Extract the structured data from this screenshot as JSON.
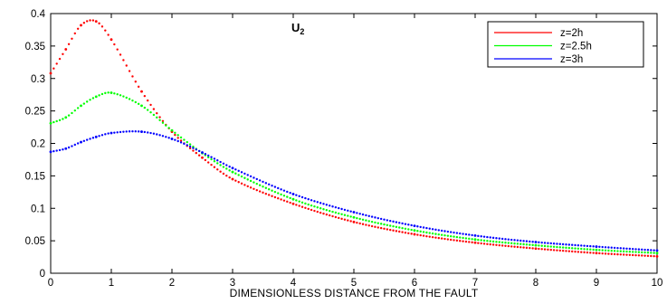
{
  "chart_data": {
    "type": "scatter",
    "title": "U2",
    "title_main": "U",
    "title_sub": "2",
    "xlabel": "DIMENSIONLESS DISTANCE FROM THE FAULT",
    "ylabel": "",
    "xlim": [
      0,
      10
    ],
    "ylim": [
      0,
      0.4
    ],
    "x_ticks": [
      "0",
      "1",
      "2",
      "3",
      "4",
      "5",
      "6",
      "7",
      "8",
      "9",
      "10"
    ],
    "y_ticks": [
      "0",
      "0.05",
      "0.1",
      "0.15",
      "0.2",
      "0.25",
      "0.3",
      "0.35",
      "0.4"
    ],
    "grid": false,
    "legend_position": "top-right",
    "marker": "dot",
    "series": [
      {
        "name": "z=2h",
        "color": "#ff0000",
        "x": [
          0,
          0.25,
          0.5,
          0.75,
          1,
          1.5,
          2,
          2.5,
          3,
          4,
          5,
          6,
          7,
          8,
          9,
          10
        ],
        "values": [
          0.308,
          0.345,
          0.382,
          0.388,
          0.36,
          0.28,
          0.218,
          0.178,
          0.145,
          0.107,
          0.079,
          0.06,
          0.047,
          0.038,
          0.031,
          0.026
        ]
      },
      {
        "name": "z=2.5h",
        "color": "#00ff00",
        "x": [
          0,
          0.25,
          0.5,
          0.75,
          1,
          1.5,
          2,
          2.5,
          3,
          4,
          5,
          6,
          7,
          8,
          9,
          10
        ],
        "values": [
          0.231,
          0.24,
          0.258,
          0.272,
          0.278,
          0.258,
          0.22,
          0.185,
          0.156,
          0.114,
          0.086,
          0.066,
          0.052,
          0.043,
          0.036,
          0.031
        ]
      },
      {
        "name": "z=3h",
        "color": "#0000ff",
        "x": [
          0,
          0.25,
          0.5,
          0.75,
          1,
          1.5,
          2,
          2.5,
          3,
          4,
          5,
          6,
          7,
          8,
          9,
          10
        ],
        "values": [
          0.187,
          0.192,
          0.202,
          0.21,
          0.216,
          0.218,
          0.207,
          0.186,
          0.162,
          0.122,
          0.094,
          0.073,
          0.058,
          0.048,
          0.041,
          0.035
        ]
      }
    ]
  }
}
